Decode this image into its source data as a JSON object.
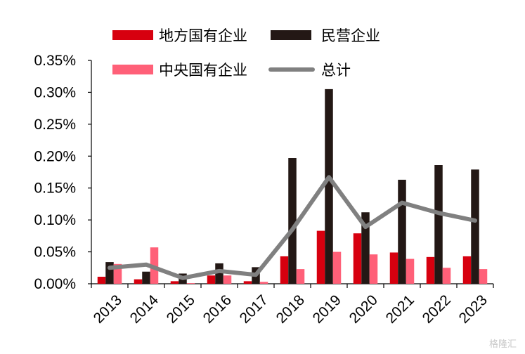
{
  "chart_data": {
    "type": "bar",
    "categories": [
      "2013",
      "2014",
      "2015",
      "2016",
      "2017",
      "2018",
      "2019",
      "2020",
      "2021",
      "2022",
      "2023"
    ],
    "ylim": [
      0,
      0.35
    ],
    "yticks": [
      "0.00%",
      "0.05%",
      "0.10%",
      "0.15%",
      "0.20%",
      "0.25%",
      "0.30%",
      "0.35%"
    ],
    "ytick_values": [
      0,
      0.05,
      0.1,
      0.15,
      0.2,
      0.25,
      0.3,
      0.35
    ],
    "grid": false,
    "legend_position": "top",
    "series": [
      {
        "name": "地方国有企业",
        "type": "bar",
        "color": "#d7000f",
        "values": [
          0.011,
          0.007,
          0.004,
          0.013,
          0.004,
          0.043,
          0.083,
          0.079,
          0.049,
          0.042,
          0.043
        ]
      },
      {
        "name": "民营企业",
        "type": "bar",
        "color": "#231815",
        "values": [
          0.034,
          0.019,
          0.016,
          0.032,
          0.026,
          0.197,
          0.305,
          0.112,
          0.163,
          0.186,
          0.179
        ]
      },
      {
        "name": "中央国有企业",
        "type": "bar",
        "color": "#ff6078",
        "values": [
          0.031,
          0.057,
          0.001,
          0.013,
          0.003,
          0.023,
          0.05,
          0.046,
          0.039,
          0.025,
          0.023
        ]
      },
      {
        "name": "总计",
        "type": "line",
        "color": "#808080",
        "values": [
          0.025,
          0.03,
          0.009,
          0.02,
          0.014,
          0.085,
          0.167,
          0.089,
          0.127,
          0.111,
          0.099
        ]
      }
    ]
  },
  "watermark": "格隆汇"
}
